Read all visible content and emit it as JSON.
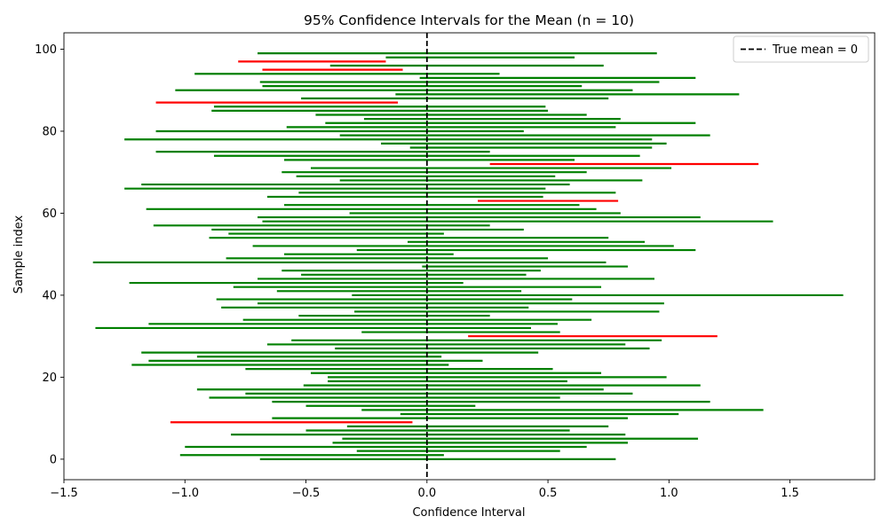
{
  "chart_data": {
    "type": "interval",
    "title": "95% Confidence Intervals for the Mean (n = 10)",
    "xlabel": "Confidence Interval",
    "ylabel": "Sample index",
    "xlim": [
      -1.5,
      1.85
    ],
    "ylim": [
      -5,
      104
    ],
    "xticks": [
      -1.5,
      -1.0,
      -0.5,
      0.0,
      0.5,
      1.0,
      1.5
    ],
    "xtick_labels": [
      "−1.5",
      "−1.0",
      "−0.5",
      "0.0",
      "0.5",
      "1.0",
      "1.5"
    ],
    "yticks": [
      0,
      20,
      40,
      60,
      80,
      100
    ],
    "ytick_labels": [
      "0",
      "20",
      "40",
      "60",
      "80",
      "100"
    ],
    "true_mean": 0,
    "legend": {
      "position": "upper-right",
      "label": "True mean = 0"
    },
    "colors": {
      "covers": "#008000",
      "misses": "#ff0000",
      "reference": "#000000"
    },
    "intervals": [
      {
        "lower": -0.69,
        "upper": 0.78,
        "covers": true
      },
      {
        "lower": -1.02,
        "upper": 0.07,
        "covers": true
      },
      {
        "lower": -0.29,
        "upper": 0.55,
        "covers": true
      },
      {
        "lower": -1.0,
        "upper": 0.66,
        "covers": true
      },
      {
        "lower": -0.39,
        "upper": 0.83,
        "covers": true
      },
      {
        "lower": -0.35,
        "upper": 1.12,
        "covers": true
      },
      {
        "lower": -0.81,
        "upper": 0.82,
        "covers": true
      },
      {
        "lower": -0.5,
        "upper": 0.59,
        "covers": true
      },
      {
        "lower": -0.33,
        "upper": 0.75,
        "covers": true
      },
      {
        "lower": -1.06,
        "upper": -0.06,
        "covers": false
      },
      {
        "lower": -0.64,
        "upper": 0.83,
        "covers": true
      },
      {
        "lower": -0.11,
        "upper": 1.04,
        "covers": true
      },
      {
        "lower": -0.27,
        "upper": 1.39,
        "covers": true
      },
      {
        "lower": -0.5,
        "upper": 0.2,
        "covers": true
      },
      {
        "lower": -0.64,
        "upper": 1.17,
        "covers": true
      },
      {
        "lower": -0.9,
        "upper": 0.55,
        "covers": true
      },
      {
        "lower": -0.75,
        "upper": 0.85,
        "covers": true
      },
      {
        "lower": -0.95,
        "upper": 0.73,
        "covers": true
      },
      {
        "lower": -0.51,
        "upper": 1.13,
        "covers": true
      },
      {
        "lower": -0.41,
        "upper": 0.58,
        "covers": true
      },
      {
        "lower": -0.41,
        "upper": 0.99,
        "covers": true
      },
      {
        "lower": -0.48,
        "upper": 0.72,
        "covers": true
      },
      {
        "lower": -0.75,
        "upper": 0.52,
        "covers": true
      },
      {
        "lower": -1.22,
        "upper": 0.09,
        "covers": true
      },
      {
        "lower": -1.15,
        "upper": 0.23,
        "covers": true
      },
      {
        "lower": -0.95,
        "upper": 0.06,
        "covers": true
      },
      {
        "lower": -1.18,
        "upper": 0.46,
        "covers": true
      },
      {
        "lower": -0.38,
        "upper": 0.92,
        "covers": true
      },
      {
        "lower": -0.66,
        "upper": 0.82,
        "covers": true
      },
      {
        "lower": -0.56,
        "upper": 0.97,
        "covers": true
      },
      {
        "lower": 0.17,
        "upper": 1.2,
        "covers": false
      },
      {
        "lower": -0.27,
        "upper": 0.55,
        "covers": true
      },
      {
        "lower": -1.37,
        "upper": 0.43,
        "covers": true
      },
      {
        "lower": -1.15,
        "upper": 0.54,
        "covers": true
      },
      {
        "lower": -0.76,
        "upper": 0.68,
        "covers": true
      },
      {
        "lower": -0.53,
        "upper": 0.26,
        "covers": true
      },
      {
        "lower": -0.3,
        "upper": 0.96,
        "covers": true
      },
      {
        "lower": -0.85,
        "upper": 0.42,
        "covers": true
      },
      {
        "lower": -0.7,
        "upper": 0.98,
        "covers": true
      },
      {
        "lower": -0.87,
        "upper": 0.6,
        "covers": true
      },
      {
        "lower": -0.31,
        "upper": 1.72,
        "covers": true
      },
      {
        "lower": -0.62,
        "upper": 0.39,
        "covers": true
      },
      {
        "lower": -0.8,
        "upper": 0.72,
        "covers": true
      },
      {
        "lower": -1.23,
        "upper": 0.15,
        "covers": true
      },
      {
        "lower": -0.7,
        "upper": 0.94,
        "covers": true
      },
      {
        "lower": -0.52,
        "upper": 0.41,
        "covers": true
      },
      {
        "lower": -0.6,
        "upper": 0.47,
        "covers": true
      },
      {
        "lower": -0.02,
        "upper": 0.83,
        "covers": true
      },
      {
        "lower": -1.38,
        "upper": 0.74,
        "covers": true
      },
      {
        "lower": -0.83,
        "upper": 0.5,
        "covers": true
      },
      {
        "lower": -0.59,
        "upper": 0.11,
        "covers": true
      },
      {
        "lower": -0.29,
        "upper": 1.11,
        "covers": true
      },
      {
        "lower": -0.72,
        "upper": 1.02,
        "covers": true
      },
      {
        "lower": -0.08,
        "upper": 0.9,
        "covers": true
      },
      {
        "lower": -0.9,
        "upper": 0.75,
        "covers": true
      },
      {
        "lower": -0.82,
        "upper": 0.07,
        "covers": true
      },
      {
        "lower": -0.89,
        "upper": 0.4,
        "covers": true
      },
      {
        "lower": -1.13,
        "upper": 0.26,
        "covers": true
      },
      {
        "lower": -0.68,
        "upper": 1.43,
        "covers": true
      },
      {
        "lower": -0.7,
        "upper": 1.13,
        "covers": true
      },
      {
        "lower": -0.32,
        "upper": 0.8,
        "covers": true
      },
      {
        "lower": -1.16,
        "upper": 0.7,
        "covers": true
      },
      {
        "lower": -0.59,
        "upper": 0.63,
        "covers": true
      },
      {
        "lower": 0.21,
        "upper": 0.79,
        "covers": false
      },
      {
        "lower": -0.66,
        "upper": 0.48,
        "covers": true
      },
      {
        "lower": -0.53,
        "upper": 0.78,
        "covers": true
      },
      {
        "lower": -1.25,
        "upper": 0.49,
        "covers": true
      },
      {
        "lower": -1.18,
        "upper": 0.59,
        "covers": true
      },
      {
        "lower": -0.36,
        "upper": 0.89,
        "covers": true
      },
      {
        "lower": -0.54,
        "upper": 0.53,
        "covers": true
      },
      {
        "lower": -0.6,
        "upper": 0.66,
        "covers": true
      },
      {
        "lower": -0.48,
        "upper": 1.01,
        "covers": true
      },
      {
        "lower": 0.26,
        "upper": 1.37,
        "covers": false
      },
      {
        "lower": -0.59,
        "upper": 0.61,
        "covers": true
      },
      {
        "lower": -0.88,
        "upper": 0.88,
        "covers": true
      },
      {
        "lower": -1.12,
        "upper": 0.26,
        "covers": true
      },
      {
        "lower": -0.07,
        "upper": 0.93,
        "covers": true
      },
      {
        "lower": -0.19,
        "upper": 0.99,
        "covers": true
      },
      {
        "lower": -1.25,
        "upper": 0.93,
        "covers": true
      },
      {
        "lower": -0.36,
        "upper": 1.17,
        "covers": true
      },
      {
        "lower": -1.12,
        "upper": 0.4,
        "covers": true
      },
      {
        "lower": -0.58,
        "upper": 0.78,
        "covers": true
      },
      {
        "lower": -0.42,
        "upper": 1.11,
        "covers": true
      },
      {
        "lower": -0.26,
        "upper": 0.8,
        "covers": true
      },
      {
        "lower": -0.46,
        "upper": 0.66,
        "covers": true
      },
      {
        "lower": -0.89,
        "upper": 0.5,
        "covers": true
      },
      {
        "lower": -0.88,
        "upper": 0.49,
        "covers": true
      },
      {
        "lower": -1.12,
        "upper": -0.12,
        "covers": false
      },
      {
        "lower": -0.52,
        "upper": 0.75,
        "covers": true
      },
      {
        "lower": -0.13,
        "upper": 1.29,
        "covers": true
      },
      {
        "lower": -1.04,
        "upper": 0.85,
        "covers": true
      },
      {
        "lower": -0.68,
        "upper": 0.64,
        "covers": true
      },
      {
        "lower": -0.69,
        "upper": 0.96,
        "covers": true
      },
      {
        "lower": -0.03,
        "upper": 1.11,
        "covers": true
      },
      {
        "lower": -0.96,
        "upper": 0.3,
        "covers": true
      },
      {
        "lower": -0.68,
        "upper": -0.1,
        "covers": false
      },
      {
        "lower": -0.4,
        "upper": 0.73,
        "covers": true
      },
      {
        "lower": -0.78,
        "upper": -0.17,
        "covers": false
      },
      {
        "lower": -0.17,
        "upper": 0.61,
        "covers": true
      },
      {
        "lower": -0.7,
        "upper": 0.95,
        "covers": true
      }
    ]
  }
}
